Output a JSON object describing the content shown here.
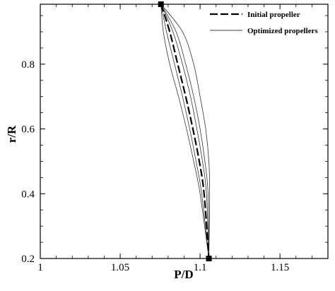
{
  "chart_data": {
    "type": "line",
    "title": "",
    "xlabel": "P/D",
    "ylabel": "r/R",
    "xlim": [
      1.0,
      1.18
    ],
    "ylim": [
      0.2,
      0.985
    ],
    "xticks": [
      "1",
      "1.05",
      "1.1",
      "1.15"
    ],
    "yticks": [
      "0.2",
      "0.4",
      "0.6",
      "0.8"
    ],
    "grid": false,
    "legend_position": "top-right",
    "legend": [
      {
        "label": "Initial propeller",
        "style": "long-dash"
      },
      {
        "label": "Optimized propellers",
        "style": "thin-solid"
      }
    ],
    "endpoints": [
      {
        "x": 1.0755,
        "y": 0.985
      },
      {
        "x": 1.1055,
        "y": 0.2
      }
    ],
    "series": [
      {
        "name": "Initial propeller",
        "style": "long-dash",
        "x": [
          1.0755,
          1.081,
          1.086,
          1.091,
          1.0955,
          1.0995,
          1.1025,
          1.1055
        ],
        "y": [
          0.985,
          0.9,
          0.8,
          0.7,
          0.6,
          0.5,
          0.4,
          0.2
        ]
      },
      {
        "name": "Optimized propellers",
        "style": "thin-solid",
        "x": [
          1.0755,
          1.089,
          1.096,
          1.1,
          1.1035,
          1.1055,
          1.106,
          1.1055
        ],
        "y": [
          0.985,
          0.9,
          0.8,
          0.7,
          0.6,
          0.5,
          0.4,
          0.2
        ]
      },
      {
        "name": "Optimized propellers",
        "style": "thin-solid",
        "x": [
          1.0755,
          1.085,
          1.091,
          1.096,
          1.1,
          1.103,
          1.105,
          1.1055
        ],
        "y": [
          0.985,
          0.9,
          0.8,
          0.7,
          0.6,
          0.5,
          0.4,
          0.2
        ]
      },
      {
        "name": "Optimized propellers",
        "style": "thin-solid",
        "x": [
          1.0755,
          1.083,
          1.089,
          1.094,
          1.098,
          1.1015,
          1.104,
          1.1055
        ],
        "y": [
          0.985,
          0.9,
          0.8,
          0.7,
          0.6,
          0.5,
          0.4,
          0.2
        ]
      },
      {
        "name": "Optimized propellers",
        "style": "thin-solid",
        "x": [
          1.0755,
          1.079,
          1.084,
          1.089,
          1.0935,
          1.0975,
          1.101,
          1.1055
        ],
        "y": [
          0.985,
          0.9,
          0.8,
          0.7,
          0.6,
          0.5,
          0.4,
          0.2
        ]
      },
      {
        "name": "Optimized propellers",
        "style": "thin-solid",
        "x": [
          1.0755,
          1.077,
          1.081,
          1.0865,
          1.0915,
          1.096,
          1.1,
          1.1055
        ],
        "y": [
          0.985,
          0.9,
          0.8,
          0.7,
          0.6,
          0.5,
          0.4,
          0.2
        ]
      }
    ]
  }
}
